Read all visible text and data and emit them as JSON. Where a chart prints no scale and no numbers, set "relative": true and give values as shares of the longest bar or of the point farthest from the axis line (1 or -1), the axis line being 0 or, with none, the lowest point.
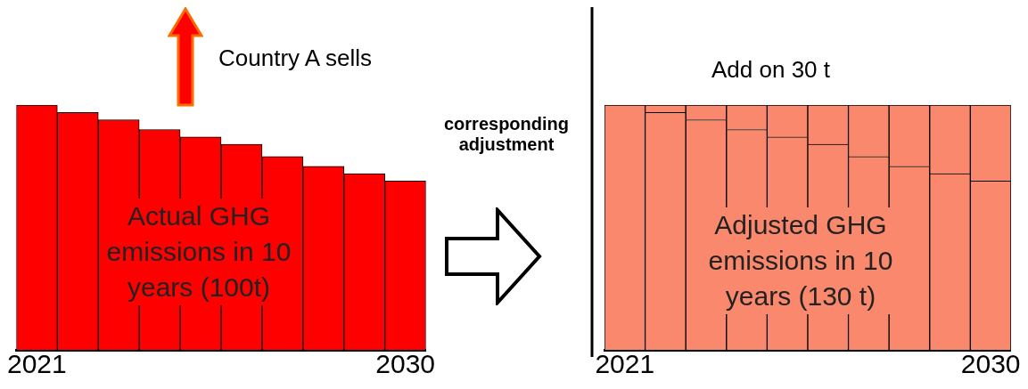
{
  "chart_data": [
    {
      "type": "bar",
      "relative": true,
      "categories": [
        "2021",
        null,
        null,
        null,
        null,
        null,
        null,
        null,
        null,
        "2030"
      ],
      "values": [
        1,
        0.97,
        0.94,
        0.9,
        0.87,
        0.84,
        0.79,
        0.75,
        0.72,
        0.69
      ],
      "color": "#ff0000",
      "annotations": [
        "Country A sells",
        "Actual GHG emissions in 10 years (100t)"
      ]
    },
    {
      "type": "bar",
      "relative": true,
      "stacked": true,
      "categories": [
        "2021",
        null,
        null,
        null,
        null,
        null,
        null,
        null,
        null,
        "2030"
      ],
      "series": [
        {
          "color": "#f9886c",
          "values": [
            1,
            0.97,
            0.94,
            0.9,
            0.87,
            0.84,
            0.79,
            0.75,
            0.72,
            0.69
          ]
        },
        {
          "color": "#f9886c",
          "values": [
            0,
            0.03,
            0.06,
            0.1,
            0.13,
            0.16,
            0.21,
            0.25,
            0.28,
            0.31
          ]
        }
      ],
      "annotations": [
        "corresponding adjustment",
        "Add on 30 t",
        "Adjusted GHG emissions in 10 years (130 t)"
      ]
    }
  ]
}
